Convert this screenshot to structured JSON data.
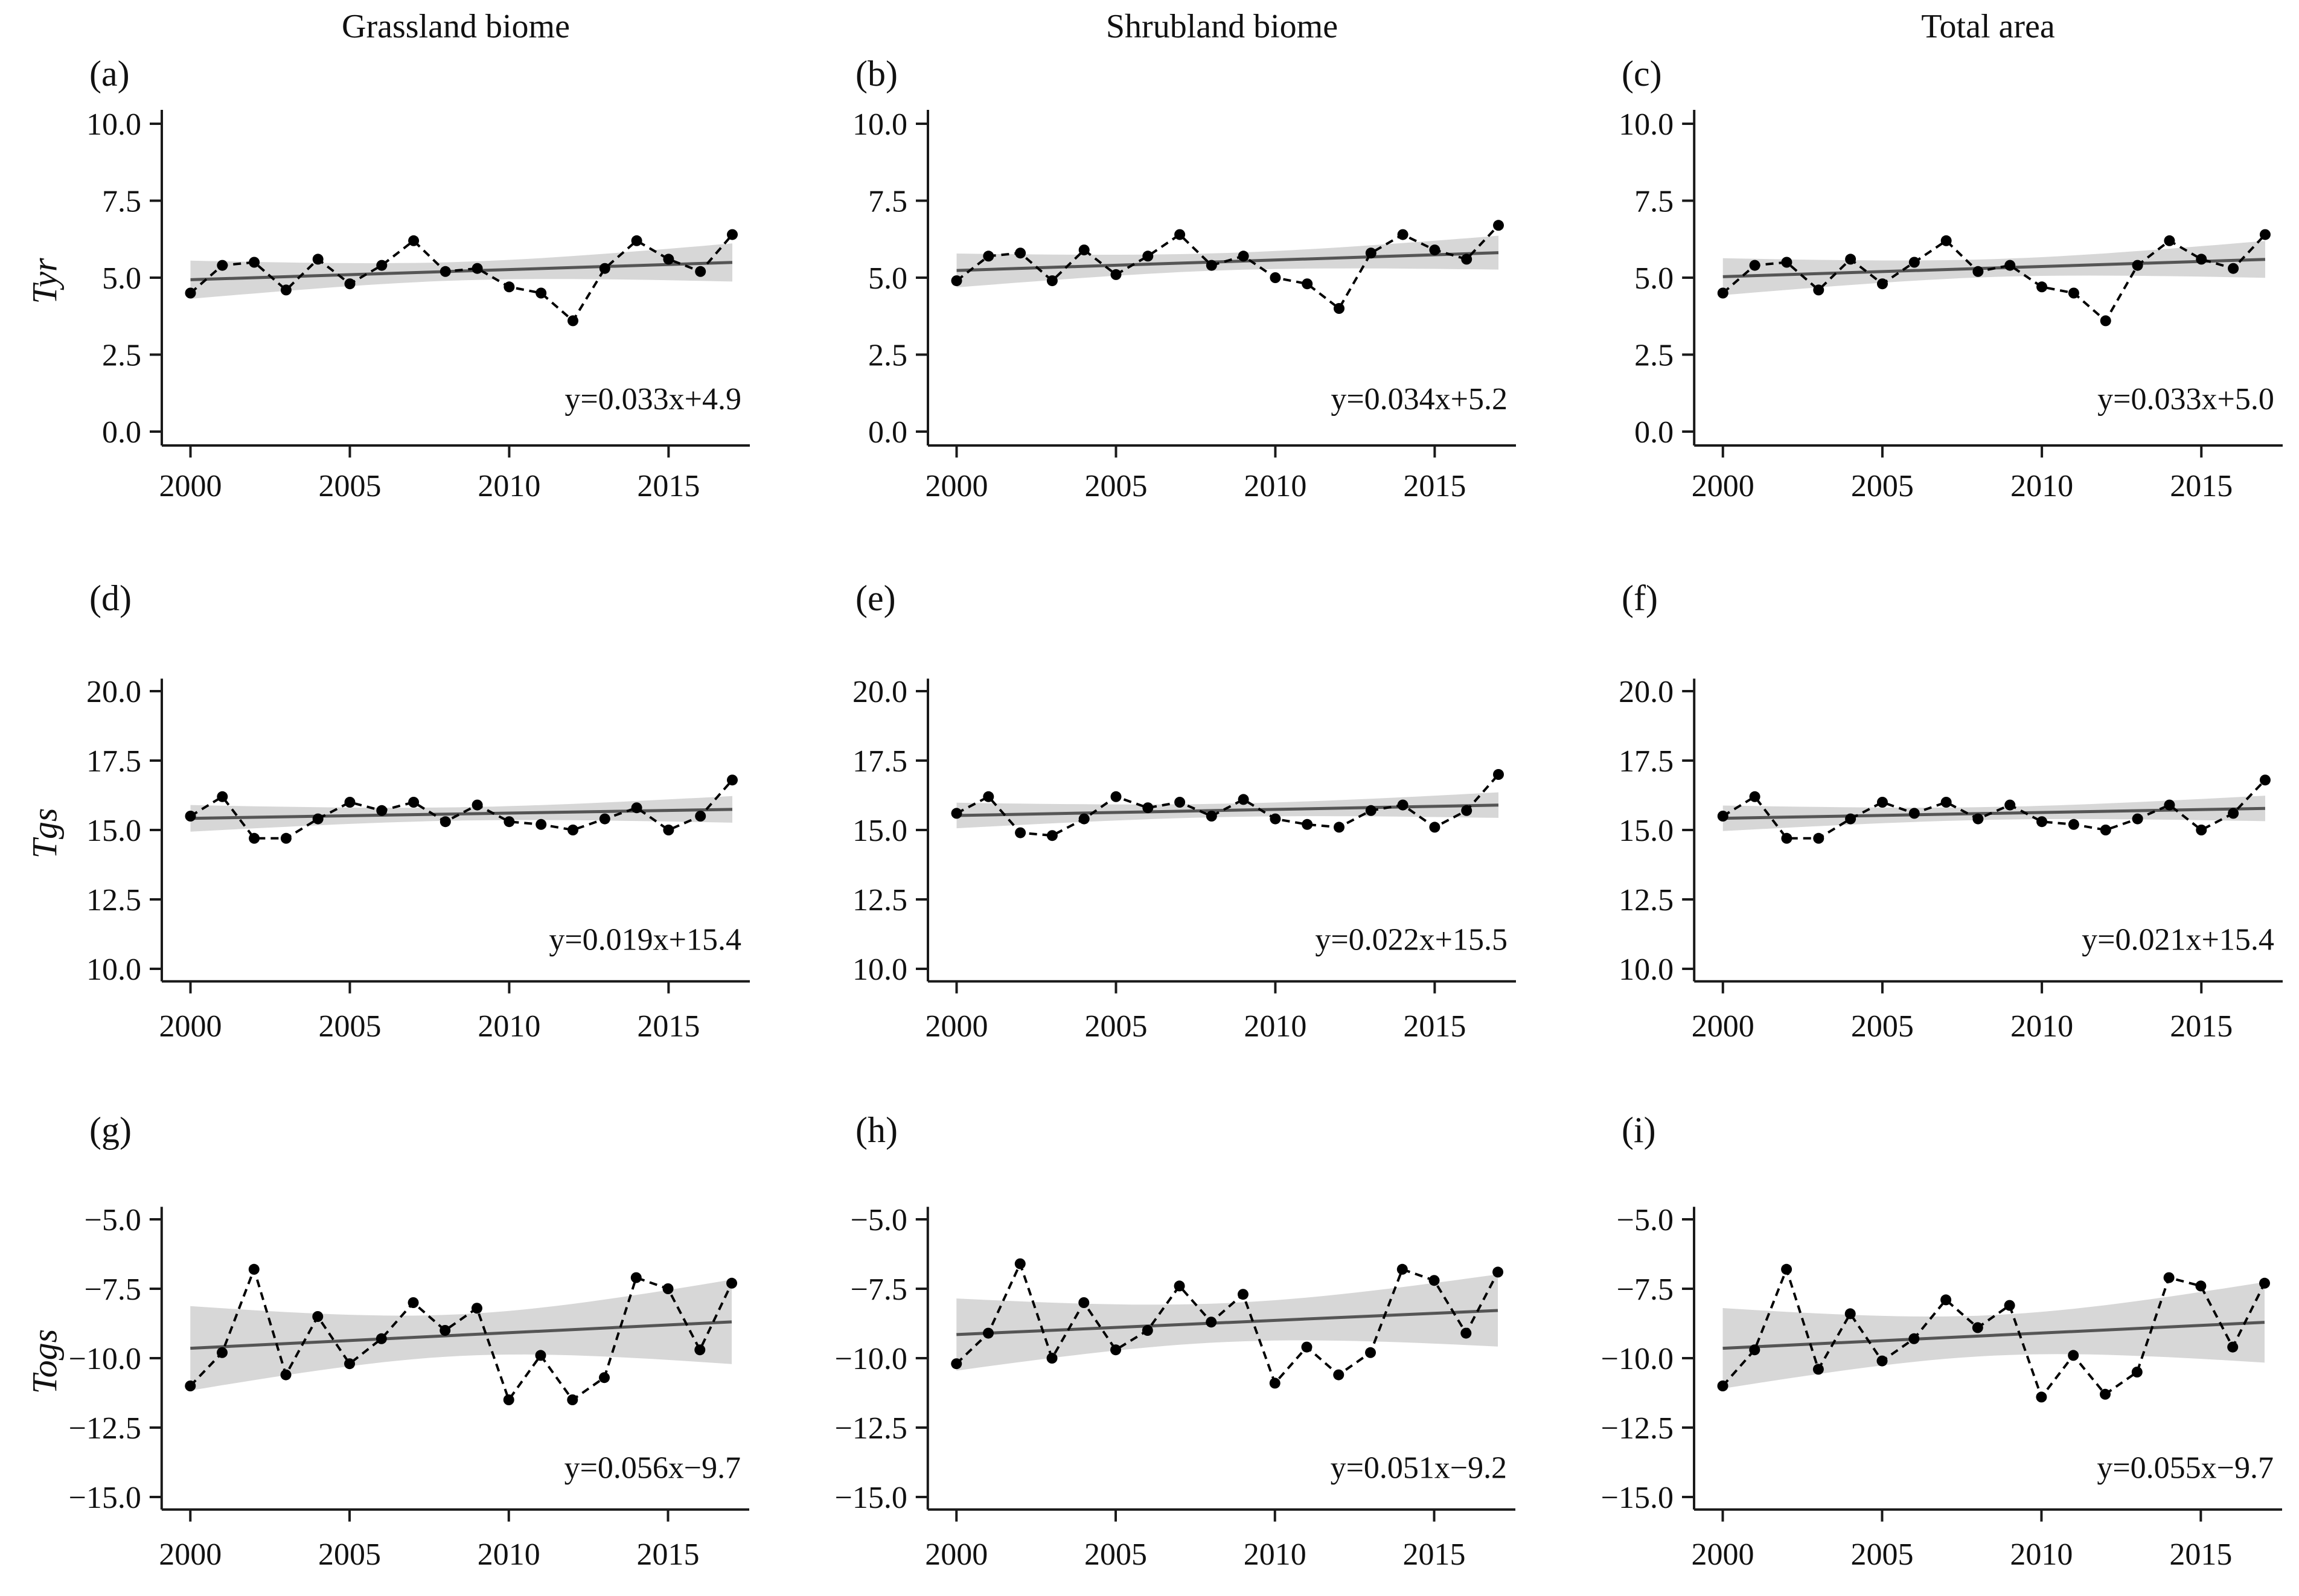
{
  "figure": {
    "columns": [
      {
        "key": "grassland",
        "title": "Grassland biome"
      },
      {
        "key": "shrubland",
        "title": "Shrubland biome"
      },
      {
        "key": "total",
        "title": "Total area"
      }
    ],
    "rows": [
      {
        "key": "tyr",
        "axis_title": "Tyr"
      },
      {
        "key": "tgs",
        "axis_title": "Tgs"
      },
      {
        "key": "togs",
        "axis_title": "Togs"
      }
    ],
    "x_ticks": [
      {
        "value": 2000,
        "label": "2000"
      },
      {
        "value": 2005,
        "label": "2005"
      },
      {
        "value": 2010,
        "label": "2010"
      },
      {
        "value": 2015,
        "label": "2015"
      }
    ],
    "colors": {
      "series": "#000000",
      "trend_line": "#555555",
      "ci_band": "#d7d7d7",
      "axis": "#1a1a1a",
      "background": "#ffffff"
    }
  },
  "chart_data": [
    {
      "type": "line",
      "panel_label": "(a)",
      "column_title": "Grassland biome",
      "ylabel": "Tyr",
      "x": [
        2000,
        2001,
        2002,
        2003,
        2004,
        2005,
        2006,
        2007,
        2008,
        2009,
        2010,
        2011,
        2012,
        2013,
        2014,
        2015,
        2016,
        2017
      ],
      "values": [
        4.5,
        5.4,
        5.5,
        4.6,
        5.6,
        4.8,
        5.4,
        6.2,
        5.2,
        5.3,
        4.7,
        4.5,
        3.6,
        5.3,
        6.2,
        5.6,
        5.2,
        6.4
      ],
      "trend": {
        "slope": 0.033,
        "intercept": 4.9,
        "x_origin": 1999,
        "equation": "y=0.033x+4.9"
      },
      "ci_halfwidth_mid": 0.3,
      "ci_halfwidth_end": 0.62,
      "ylim": [
        0,
        10
      ],
      "yticks": [
        10.0,
        7.5,
        5.0,
        2.5,
        0.0
      ],
      "ytick_labels": [
        "10.0",
        "7.5",
        "5.0",
        "2.5",
        "0.0"
      ]
    },
    {
      "type": "line",
      "panel_label": "(b)",
      "column_title": "Shrubland biome",
      "ylabel": "Tyr",
      "x": [
        2000,
        2001,
        2002,
        2003,
        2004,
        2005,
        2006,
        2007,
        2008,
        2009,
        2010,
        2011,
        2012,
        2013,
        2014,
        2015,
        2016,
        2017
      ],
      "values": [
        4.9,
        5.7,
        5.8,
        4.9,
        5.9,
        5.1,
        5.7,
        6.4,
        5.4,
        5.7,
        5.0,
        4.8,
        4.0,
        5.8,
        6.4,
        5.9,
        5.6,
        6.7
      ],
      "trend": {
        "slope": 0.034,
        "intercept": 5.2,
        "x_origin": 1999,
        "equation": "y=0.034x+5.2"
      },
      "ci_halfwidth_mid": 0.28,
      "ci_halfwidth_end": 0.55,
      "ylim": [
        0,
        10
      ],
      "yticks": [
        10.0,
        7.5,
        5.0,
        2.5,
        0.0
      ],
      "ytick_labels": [
        "10.0",
        "7.5",
        "5.0",
        "2.5",
        "0.0"
      ]
    },
    {
      "type": "line",
      "panel_label": "(c)",
      "column_title": "Total area",
      "ylabel": "Tyr",
      "x": [
        2000,
        2001,
        2002,
        2003,
        2004,
        2005,
        2006,
        2007,
        2008,
        2009,
        2010,
        2011,
        2012,
        2013,
        2014,
        2015,
        2016,
        2017
      ],
      "values": [
        4.5,
        5.4,
        5.5,
        4.6,
        5.6,
        4.8,
        5.5,
        6.2,
        5.2,
        5.4,
        4.7,
        4.5,
        3.6,
        5.4,
        6.2,
        5.6,
        5.3,
        6.4
      ],
      "trend": {
        "slope": 0.033,
        "intercept": 5.0,
        "x_origin": 1999,
        "equation": "y=0.033x+5.0"
      },
      "ci_halfwidth_mid": 0.29,
      "ci_halfwidth_end": 0.6,
      "ylim": [
        0,
        10
      ],
      "yticks": [
        10.0,
        7.5,
        5.0,
        2.5,
        0.0
      ],
      "ytick_labels": [
        "10.0",
        "7.5",
        "5.0",
        "2.5",
        "0.0"
      ]
    },
    {
      "type": "line",
      "panel_label": "(d)",
      "column_title": "Grassland biome",
      "ylabel": "Tgs",
      "x": [
        2000,
        2001,
        2002,
        2003,
        2004,
        2005,
        2006,
        2007,
        2008,
        2009,
        2010,
        2011,
        2012,
        2013,
        2014,
        2015,
        2016,
        2017
      ],
      "values": [
        15.5,
        16.2,
        14.7,
        14.7,
        15.4,
        16.0,
        15.7,
        16.0,
        15.3,
        15.9,
        15.3,
        15.2,
        15.0,
        15.4,
        15.8,
        15.0,
        15.5,
        16.8
      ],
      "trend": {
        "slope": 0.019,
        "intercept": 15.4,
        "x_origin": 1999,
        "equation": "y=0.019x+15.4"
      },
      "ci_halfwidth_mid": 0.24,
      "ci_halfwidth_end": 0.48,
      "ylim": [
        10,
        20
      ],
      "yticks": [
        20.0,
        17.5,
        15.0,
        12.5,
        10.0
      ],
      "ytick_labels": [
        "20.0",
        "17.5",
        "15.0",
        "12.5",
        "10.0"
      ]
    },
    {
      "type": "line",
      "panel_label": "(e)",
      "column_title": "Shrubland biome",
      "ylabel": "Tgs",
      "x": [
        2000,
        2001,
        2002,
        2003,
        2004,
        2005,
        2006,
        2007,
        2008,
        2009,
        2010,
        2011,
        2012,
        2013,
        2014,
        2015,
        2016,
        2017
      ],
      "values": [
        15.6,
        16.2,
        14.9,
        14.8,
        15.4,
        16.2,
        15.8,
        16.0,
        15.5,
        16.1,
        15.4,
        15.2,
        15.1,
        15.7,
        15.9,
        15.1,
        15.7,
        17.0
      ],
      "trend": {
        "slope": 0.022,
        "intercept": 15.5,
        "x_origin": 1999,
        "equation": "y=0.022x+15.5"
      },
      "ci_halfwidth_mid": 0.24,
      "ci_halfwidth_end": 0.46,
      "ylim": [
        10,
        20
      ],
      "yticks": [
        20.0,
        17.5,
        15.0,
        12.5,
        10.0
      ],
      "ytick_labels": [
        "20.0",
        "17.5",
        "15.0",
        "12.5",
        "10.0"
      ]
    },
    {
      "type": "line",
      "panel_label": "(f)",
      "column_title": "Total area",
      "ylabel": "Tgs",
      "x": [
        2000,
        2001,
        2002,
        2003,
        2004,
        2005,
        2006,
        2007,
        2008,
        2009,
        2010,
        2011,
        2012,
        2013,
        2014,
        2015,
        2016,
        2017
      ],
      "values": [
        15.5,
        16.2,
        14.7,
        14.7,
        15.4,
        16.0,
        15.6,
        16.0,
        15.4,
        15.9,
        15.3,
        15.2,
        15.0,
        15.4,
        15.9,
        15.0,
        15.6,
        16.8
      ],
      "trend": {
        "slope": 0.021,
        "intercept": 15.4,
        "x_origin": 1999,
        "equation": "y=0.021x+15.4"
      },
      "ci_halfwidth_mid": 0.23,
      "ci_halfwidth_end": 0.46,
      "ylim": [
        10,
        20
      ],
      "yticks": [
        20.0,
        17.5,
        15.0,
        12.5,
        10.0
      ],
      "ytick_labels": [
        "20.0",
        "17.5",
        "15.0",
        "12.5",
        "10.0"
      ]
    },
    {
      "type": "line",
      "panel_label": "(g)",
      "column_title": "Grassland biome",
      "ylabel": "Togs",
      "x": [
        2000,
        2001,
        2002,
        2003,
        2004,
        2005,
        2006,
        2007,
        2008,
        2009,
        2010,
        2011,
        2012,
        2013,
        2014,
        2015,
        2016,
        2017
      ],
      "values": [
        -11.0,
        -9.8,
        -6.8,
        -10.6,
        -8.5,
        -10.2,
        -9.3,
        -8.0,
        -9.0,
        -8.2,
        -11.5,
        -9.9,
        -11.5,
        -10.7,
        -7.1,
        -7.5,
        -9.7,
        -7.3
      ],
      "trend": {
        "slope": 0.056,
        "intercept": -9.7,
        "x_origin": 1999,
        "equation": "y=0.056x−9.7"
      },
      "ci_halfwidth_mid": 0.75,
      "ci_halfwidth_end": 1.52,
      "ylim": [
        -15,
        -5
      ],
      "yticks": [
        -5.0,
        -7.5,
        -10.0,
        -12.5,
        -15.0
      ],
      "ytick_labels": [
        "−5.0",
        "−7.5",
        "−10.0",
        "−12.5",
        "−15.0"
      ]
    },
    {
      "type": "line",
      "panel_label": "(h)",
      "column_title": "Shrubland biome",
      "ylabel": "Togs",
      "x": [
        2000,
        2001,
        2002,
        2003,
        2004,
        2005,
        2006,
        2007,
        2008,
        2009,
        2010,
        2011,
        2012,
        2013,
        2014,
        2015,
        2016,
        2017
      ],
      "values": [
        -10.2,
        -9.1,
        -6.6,
        -10.0,
        -8.0,
        -9.7,
        -9.0,
        -7.4,
        -8.7,
        -7.7,
        -10.9,
        -9.6,
        -10.6,
        -9.8,
        -6.8,
        -7.2,
        -9.1,
        -6.9
      ],
      "trend": {
        "slope": 0.051,
        "intercept": -9.2,
        "x_origin": 1999,
        "equation": "y=0.051x−9.2"
      },
      "ci_halfwidth_mid": 0.7,
      "ci_halfwidth_end": 1.3,
      "ylim": [
        -15,
        -5
      ],
      "yticks": [
        -5.0,
        -7.5,
        -10.0,
        -12.5,
        -15.0
      ],
      "ytick_labels": [
        "−5.0",
        "−7.5",
        "−10.0",
        "−12.5",
        "−15.0"
      ]
    },
    {
      "type": "line",
      "panel_label": "(i)",
      "column_title": "Total area",
      "ylabel": "Togs",
      "x": [
        2000,
        2001,
        2002,
        2003,
        2004,
        2005,
        2006,
        2007,
        2008,
        2009,
        2010,
        2011,
        2012,
        2013,
        2014,
        2015,
        2016,
        2017
      ],
      "values": [
        -11.0,
        -9.7,
        -6.8,
        -10.4,
        -8.4,
        -10.1,
        -9.3,
        -7.9,
        -8.9,
        -8.1,
        -11.4,
        -9.9,
        -11.3,
        -10.5,
        -7.1,
        -7.4,
        -9.6,
        -7.3
      ],
      "trend": {
        "slope": 0.055,
        "intercept": -9.7,
        "x_origin": 1999,
        "equation": "y=0.055x−9.7"
      },
      "ci_halfwidth_mid": 0.73,
      "ci_halfwidth_end": 1.45,
      "ylim": [
        -15,
        -5
      ],
      "yticks": [
        -5.0,
        -7.5,
        -10.0,
        -12.5,
        -15.0
      ],
      "ytick_labels": [
        "−5.0",
        "−7.5",
        "−10.0",
        "−12.5",
        "−15.0"
      ]
    }
  ]
}
